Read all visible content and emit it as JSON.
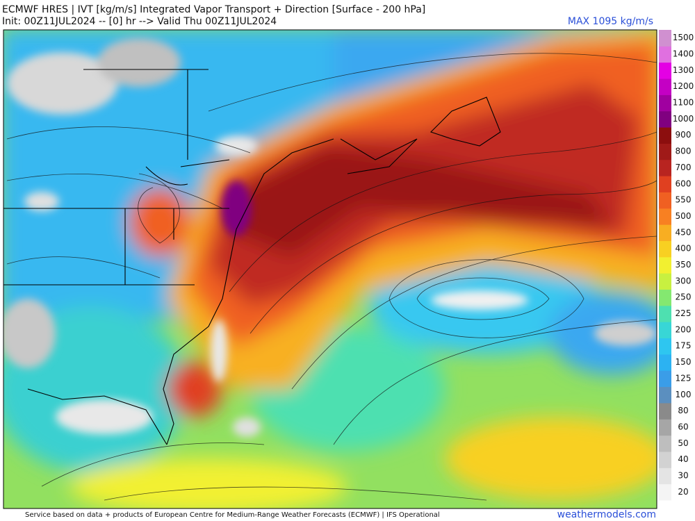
{
  "header": {
    "title": "ECMWF HRES | IVT [kg/m/s] Integrated Vapor Transport + Direction [Surface - 200 hPa]",
    "subtitle": "Init: 00Z11JUL2024 -- [0] hr --> Valid Thu 00Z11JUL2024",
    "max_label": "MAX 1095 kg/m/s"
  },
  "colorbar": {
    "levels": [
      {
        "label": "20",
        "color": "#f4f4f4"
      },
      {
        "label": "30",
        "color": "#e4e4e4"
      },
      {
        "label": "40",
        "color": "#d2d2d2"
      },
      {
        "label": "50",
        "color": "#bebebe"
      },
      {
        "label": "60",
        "color": "#a6a6a6"
      },
      {
        "label": "80",
        "color": "#8a8a8a"
      },
      {
        "label": "100",
        "color": "#5b8fbf"
      },
      {
        "label": "125",
        "color": "#3a9de8"
      },
      {
        "label": "150",
        "color": "#2cb2f2"
      },
      {
        "label": "175",
        "color": "#2ec6f0"
      },
      {
        "label": "200",
        "color": "#38d6d6"
      },
      {
        "label": "225",
        "color": "#4ee0b0"
      },
      {
        "label": "250",
        "color": "#84e870"
      },
      {
        "label": "300",
        "color": "#c8f040"
      },
      {
        "label": "350",
        "color": "#f2f030"
      },
      {
        "label": "400",
        "color": "#f8d022"
      },
      {
        "label": "450",
        "color": "#f8ae22"
      },
      {
        "label": "500",
        "color": "#f88022"
      },
      {
        "label": "550",
        "color": "#f06022"
      },
      {
        "label": "600",
        "color": "#e04020"
      },
      {
        "label": "700",
        "color": "#b82420"
      },
      {
        "label": "800",
        "color": "#a01a18"
      },
      {
        "label": "900",
        "color": "#8c0e0e"
      },
      {
        "label": "1000",
        "color": "#800080"
      },
      {
        "label": "1100",
        "color": "#a000a0"
      },
      {
        "label": "1200",
        "color": "#c400c4"
      },
      {
        "label": "1300",
        "color": "#e400e4"
      },
      {
        "label": "1400",
        "color": "#e070e0"
      },
      {
        "label": "1500",
        "color": "#d090d0"
      }
    ]
  },
  "footer": {
    "credit": "Service based on data + products of European Centre for Medium-Range Weather Forecasts (ECMWF) | IFS Operational",
    "site": "weathermodels.com"
  }
}
